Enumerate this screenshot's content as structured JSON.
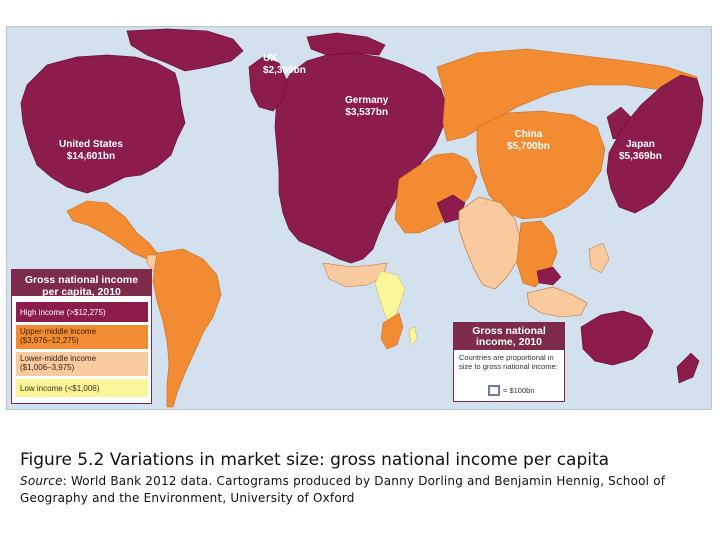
{
  "map": {
    "labels": {
      "uk": {
        "name": "UK",
        "value": "$2,399bn"
      },
      "germany": {
        "name": "Germany",
        "value": "$3,537bn"
      },
      "united_states": {
        "name": "United States",
        "value": "$14,601bn"
      },
      "china": {
        "name": "China",
        "value": "$5,700bn"
      },
      "japan": {
        "name": "Japan",
        "value": "$5,369bn"
      }
    },
    "colors": {
      "high": "#8c1c4c",
      "upper_middle": "#f28b32",
      "lower_middle": "#f9c9a0",
      "low": "#fbf59a",
      "ocean": "#d3e1ef"
    }
  },
  "legend_income": {
    "title_line1": "Gross national income",
    "title_line2": "per capita, 2010",
    "items": [
      {
        "line1": "High income (>$12,275)",
        "line2": ""
      },
      {
        "line1": "Upper-middle income",
        "line2": "($3,976–12,275)"
      },
      {
        "line1": "Lower-middle income",
        "line2": "($1,006–3,975)"
      },
      {
        "line1": "Low income (<$1,006)",
        "line2": ""
      }
    ]
  },
  "legend_gni": {
    "title_line1": "Gross national",
    "title_line2": "income, 2010",
    "text_line1": "Countries are proportional in",
    "text_line2": "size to gross national income:",
    "key": "= $100bn"
  },
  "caption": {
    "title": "Figure 5.2 Variations in market size: gross national income per capita",
    "source_label": "Source",
    "source_text": ": World Bank 2012 data. Cartograms produced by Danny Dorling and Benjamin Hennig, School of Geography and the Environment, University of Oxford"
  }
}
